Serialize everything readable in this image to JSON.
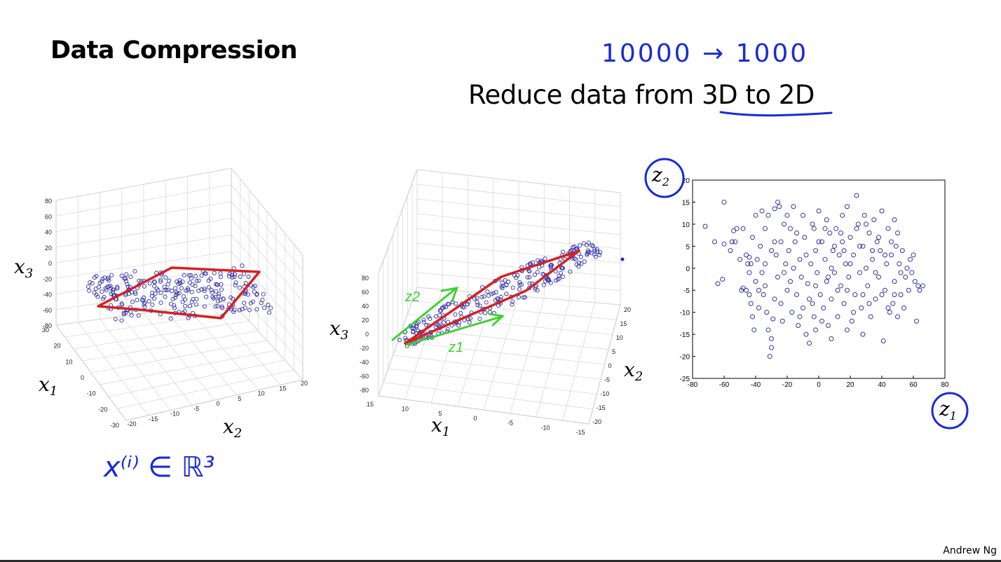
{
  "slide": {
    "title": "Data Compression",
    "subtitle": "Reduce data from 3D to 2D",
    "annotation_top": "10000 → 1000",
    "annotation_bottom": "x⁽ⁱ⁾ ∈ ℝ³",
    "footer": "Andrew Ng",
    "ink_color": "#1a2bd8",
    "plane_color": "#d62020",
    "vector_color": "#39d12b"
  },
  "chart_data": [
    {
      "type": "scatter",
      "title": "",
      "projection": "3d",
      "xlabel": "x1",
      "ylabel": "x2",
      "zlabel": "x3",
      "x1_ticks": [
        "30",
        "20",
        "10",
        "0",
        "-10",
        "-20",
        "-30"
      ],
      "x2_ticks": [
        "-20",
        "-15",
        "-10",
        "-5",
        "0",
        "5",
        "10",
        "15",
        "20"
      ],
      "x3_ticks": [
        "80",
        "60",
        "40",
        "20",
        "0",
        "-20",
        "-40",
        "-60",
        "-80"
      ],
      "grid": true,
      "annotation": "red plane outline around the point cloud",
      "marker": "open circle",
      "marker_color": "#3333aa"
    },
    {
      "type": "scatter",
      "title": "",
      "projection": "3d",
      "xlabel": "x1",
      "ylabel": "x2",
      "zlabel": "x3",
      "x1_ticks": [
        "15",
        "10",
        "5",
        "0",
        "-5",
        "-10",
        "-15"
      ],
      "x2_ticks": [
        "20",
        "15",
        "10",
        "5",
        "0",
        "-5",
        "-10",
        "-15",
        "-20"
      ],
      "x3_ticks": [
        "80",
        "60",
        "40",
        "20",
        "0",
        "-20",
        "-40",
        "-60",
        "-80"
      ],
      "grid": true,
      "vector_labels": [
        "z2",
        "z1"
      ],
      "marker": "open circle",
      "marker_color": "#3333aa"
    },
    {
      "type": "scatter",
      "title": "",
      "xlabel": "z1",
      "ylabel": "z2",
      "xlim": [
        -80,
        80
      ],
      "ylim": [
        -25,
        20
      ],
      "xticks": [
        -80,
        -60,
        -40,
        -20,
        0,
        20,
        40,
        60,
        80
      ],
      "yticks": [
        -25,
        -20,
        -15,
        -10,
        -5,
        0,
        5,
        10,
        15,
        20
      ],
      "marker": "open circle",
      "marker_color": "#3333aa",
      "points": [
        [
          -72,
          9.5
        ],
        [
          -66,
          6
        ],
        [
          -64,
          -3.5
        ],
        [
          -61,
          -2.5
        ],
        [
          -60,
          15
        ],
        [
          -60,
          5.5
        ],
        [
          -55,
          6
        ],
        [
          -54,
          8.5
        ],
        [
          -53,
          6
        ],
        [
          -52,
          9
        ],
        [
          -49,
          -5
        ],
        [
          -48,
          -4.5
        ],
        [
          -46,
          -5
        ],
        [
          -45,
          1
        ],
        [
          -44,
          2.5
        ],
        [
          -44,
          -1
        ],
        [
          -43,
          1
        ],
        [
          -43,
          -8
        ],
        [
          -42,
          7
        ],
        [
          -42,
          -11
        ],
        [
          -41,
          -14
        ],
        [
          -40,
          12
        ],
        [
          -39,
          2
        ],
        [
          -38,
          -9
        ],
        [
          -37,
          5
        ],
        [
          -36,
          13
        ],
        [
          -35,
          -6
        ],
        [
          -34,
          1
        ],
        [
          -34,
          -4
        ],
        [
          -33,
          -10
        ],
        [
          -32,
          12
        ],
        [
          -32,
          -14
        ],
        [
          -31,
          -20
        ],
        [
          -30,
          -18
        ],
        [
          -29,
          -11.5
        ],
        [
          -28,
          13.5
        ],
        [
          -28,
          6
        ],
        [
          -27,
          3
        ],
        [
          -26,
          -2
        ],
        [
          -26,
          15
        ],
        [
          -25,
          14
        ],
        [
          -24,
          -8
        ],
        [
          -23,
          -12
        ],
        [
          -22,
          10
        ],
        [
          -22,
          -1
        ],
        [
          -21,
          1
        ],
        [
          -20,
          -5
        ],
        [
          -19,
          4
        ],
        [
          -18,
          9
        ],
        [
          -17,
          -10
        ],
        [
          -16,
          14
        ],
        [
          -15,
          6
        ],
        [
          -14,
          -6
        ],
        [
          -13,
          -13
        ],
        [
          -12,
          2
        ],
        [
          -11,
          -2
        ],
        [
          -10,
          12
        ],
        [
          -10,
          -9
        ],
        [
          -9,
          7
        ],
        [
          -8,
          -15
        ],
        [
          -7,
          -3.5
        ],
        [
          -6,
          -17
        ],
        [
          -5,
          1
        ],
        [
          -4,
          -8
        ],
        [
          -3,
          9
        ],
        [
          -3,
          -11
        ],
        [
          -2,
          4
        ],
        [
          -1,
          -1
        ],
        [
          0,
          13
        ],
        [
          1,
          -6
        ],
        [
          2,
          6
        ],
        [
          3,
          -9
        ],
        [
          4,
          2
        ],
        [
          5,
          11
        ],
        [
          5,
          -3
        ],
        [
          6,
          -13
        ],
        [
          7,
          8
        ],
        [
          8,
          0
        ],
        [
          8,
          -7
        ],
        [
          9,
          4
        ],
        [
          10,
          -1
        ],
        [
          11,
          9
        ],
        [
          12,
          -11
        ],
        [
          13,
          3
        ],
        [
          14,
          -4
        ],
        [
          15,
          12
        ],
        [
          15,
          6
        ],
        [
          16,
          -8
        ],
        [
          17,
          1
        ],
        [
          18,
          14
        ],
        [
          19,
          -2
        ],
        [
          20,
          7
        ],
        [
          21,
          -12
        ],
        [
          22,
          3
        ],
        [
          23,
          -6
        ],
        [
          24,
          16.5
        ],
        [
          25,
          10
        ],
        [
          26,
          -1
        ],
        [
          27,
          -9
        ],
        [
          28,
          5
        ],
        [
          29,
          12
        ],
        [
          30,
          0
        ],
        [
          31,
          -4
        ],
        [
          32,
          8
        ],
        [
          33,
          -11
        ],
        [
          34,
          2
        ],
        [
          35,
          11
        ],
        [
          36,
          -7
        ],
        [
          37,
          6
        ],
        [
          38,
          -2
        ],
        [
          39,
          4
        ],
        [
          40,
          13
        ],
        [
          41,
          -16.5
        ],
        [
          42,
          -5
        ],
        [
          43,
          1
        ],
        [
          44,
          9
        ],
        [
          45,
          -10
        ],
        [
          46,
          3
        ],
        [
          47,
          -8
        ],
        [
          48,
          -3
        ],
        [
          49,
          5
        ],
        [
          50,
          -11
        ],
        [
          51,
          1
        ],
        [
          52,
          -6
        ],
        [
          53,
          4
        ],
        [
          54,
          -9
        ],
        [
          55,
          -2
        ],
        [
          56,
          0
        ],
        [
          57,
          -5
        ],
        [
          58,
          2
        ],
        [
          59,
          -1
        ],
        [
          60,
          3
        ],
        [
          61,
          -3
        ],
        [
          62,
          -12
        ],
        [
          63,
          -4
        ],
        [
          64,
          -5
        ],
        [
          66,
          -4
        ],
        [
          -40,
          -3
        ],
        [
          -38,
          -5
        ],
        [
          -36,
          -1
        ],
        [
          -34,
          9
        ],
        [
          -30,
          4
        ],
        [
          -28,
          -7
        ],
        [
          -24,
          6
        ],
        [
          -20,
          12
        ],
        [
          -18,
          -3
        ],
        [
          -16,
          0
        ],
        [
          -14,
          8
        ],
        [
          -12,
          -11
        ],
        [
          -8,
          3
        ],
        [
          -6,
          -7
        ],
        [
          -4,
          10
        ],
        [
          -2,
          -4
        ],
        [
          0,
          6
        ],
        [
          2,
          -12
        ],
        [
          4,
          9
        ],
        [
          6,
          -2
        ],
        [
          10,
          5
        ],
        [
          12,
          -5
        ],
        [
          14,
          8
        ],
        [
          16,
          4
        ],
        [
          18,
          -5
        ],
        [
          20,
          1
        ],
        [
          22,
          -10
        ],
        [
          24,
          9
        ],
        [
          26,
          5
        ],
        [
          28,
          -6
        ],
        [
          30,
          10
        ],
        [
          32,
          -8
        ],
        [
          34,
          4
        ],
        [
          36,
          -1
        ],
        [
          38,
          7
        ],
        [
          40,
          -6
        ],
        [
          42,
          3
        ],
        [
          44,
          -9
        ],
        [
          46,
          6
        ],
        [
          48,
          -6
        ],
        [
          50,
          8
        ],
        [
          52,
          -1
        ],
        [
          -46,
          3
        ],
        [
          -44,
          -6
        ],
        [
          -50,
          2
        ],
        [
          -56,
          4
        ],
        [
          -48,
          9
        ],
        [
          -30,
          -16
        ],
        [
          -2,
          -14
        ],
        [
          8,
          -16
        ],
        [
          18,
          -14
        ],
        [
          28,
          -15
        ],
        [
          48,
          11
        ]
      ]
    }
  ]
}
